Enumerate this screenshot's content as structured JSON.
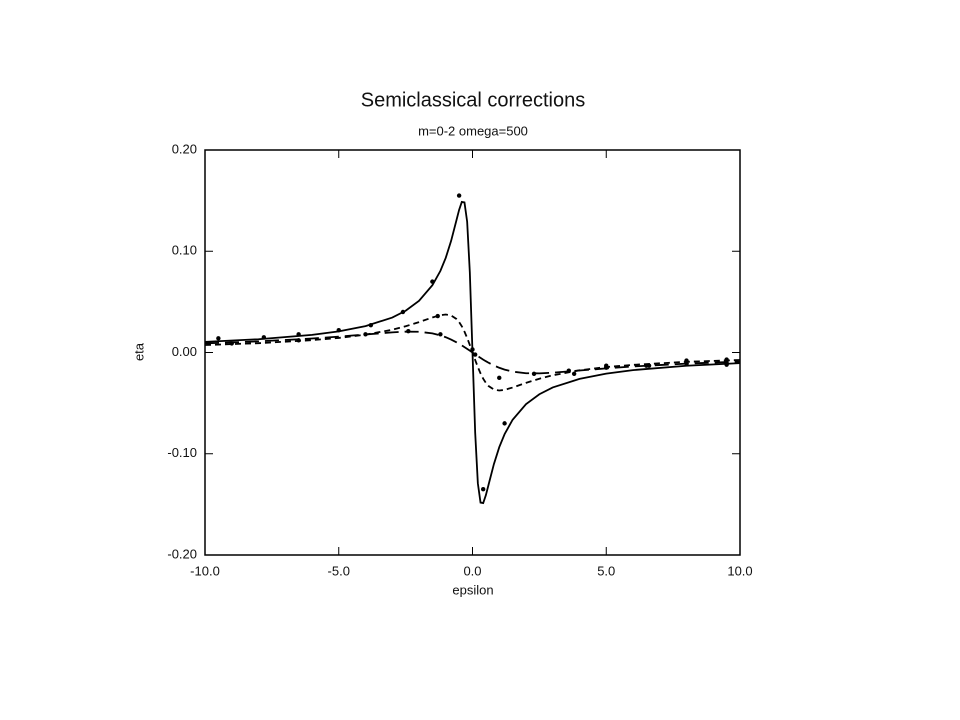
{
  "chart_data": {
    "type": "line",
    "title": "Semiclassical corrections",
    "subtitle": "m=0-2   omega=500",
    "xlabel": "epsilon",
    "ylabel": "eta",
    "xlim": [
      -10,
      10
    ],
    "ylim": [
      -0.2,
      0.2
    ],
    "xticks": [
      {
        "value": -10,
        "label": "-10.0"
      },
      {
        "value": -5,
        "label": "-5.0"
      },
      {
        "value": 0,
        "label": "0.0"
      },
      {
        "value": 5,
        "label": "5.0"
      },
      {
        "value": 10,
        "label": "10.0"
      }
    ],
    "yticks": [
      {
        "value": -0.2,
        "label": "-0.20"
      },
      {
        "value": -0.1,
        "label": "-0.10"
      },
      {
        "value": 0,
        "label": "0.00"
      },
      {
        "value": 0.1,
        "label": "0.10"
      },
      {
        "value": 0.2,
        "label": "0.20"
      }
    ],
    "x": [
      -10,
      -8,
      -6,
      -5,
      -4,
      -3,
      -2.5,
      -2,
      -1.5,
      -1.2,
      -1,
      -0.8,
      -0.6,
      -0.5,
      -0.4,
      -0.3,
      -0.2,
      -0.1,
      0,
      0.1,
      0.2,
      0.3,
      0.4,
      0.5,
      0.6,
      0.8,
      1,
      1.2,
      1.5,
      2,
      2.5,
      3,
      4,
      5,
      6,
      8,
      10
    ],
    "series": [
      {
        "type": "line",
        "color": "#000000",
        "dash": "none",
        "values": [
          0.0105,
          0.0131,
          0.0174,
          0.0209,
          0.0261,
          0.0345,
          0.0412,
          0.051,
          0.0664,
          0.0806,
          0.0935,
          0.1102,
          0.1306,
          0.1409,
          0.1487,
          0.1482,
          0.1292,
          0.0792,
          0,
          -0.0792,
          -0.1292,
          -0.1482,
          -0.1487,
          -0.1409,
          -0.1306,
          -0.1102,
          -0.0935,
          -0.0806,
          -0.0664,
          -0.051,
          -0.0412,
          -0.0345,
          -0.0261,
          -0.0209,
          -0.0174,
          -0.0131,
          -0.0105
        ]
      },
      {
        "type": "line",
        "color": "#000000",
        "dash": "6 4",
        "values": [
          0.0074,
          0.0092,
          0.0122,
          0.0144,
          0.0176,
          0.0225,
          0.0259,
          0.03,
          0.0346,
          0.0369,
          0.0375,
          0.0366,
          0.0331,
          0.03,
          0.0259,
          0.0206,
          0.0144,
          0.0074,
          0,
          -0.0074,
          -0.0144,
          -0.0206,
          -0.0259,
          -0.03,
          -0.0331,
          -0.0366,
          -0.0375,
          -0.0369,
          -0.0346,
          -0.03,
          -0.0259,
          -0.0225,
          -0.0176,
          -0.0144,
          -0.0122,
          -0.0092,
          -0.0074
        ]
      },
      {
        "type": "line",
        "color": "#000000",
        "dash": "14 6",
        "values": [
          0.009,
          0.011,
          0.0138,
          0.0157,
          0.0178,
          0.0199,
          0.0206,
          0.0205,
          0.0189,
          0.0169,
          0.0151,
          0.0128,
          0.0101,
          0.0086,
          0.007,
          0.0053,
          0.0036,
          0.0018,
          0,
          -0.0018,
          -0.0036,
          -0.0053,
          -0.007,
          -0.0086,
          -0.0101,
          -0.0128,
          -0.0151,
          -0.0169,
          -0.0189,
          -0.0205,
          -0.0206,
          -0.0199,
          -0.0178,
          -0.0157,
          -0.0138,
          -0.011,
          -0.009
        ]
      },
      {
        "type": "scatter",
        "color": "#000000",
        "x": [
          -9.5,
          -7.8,
          -6.5,
          -5,
          -3.8,
          -2.6,
          -1.5,
          -0.5,
          0.4,
          1.2,
          2.3,
          3.6,
          5,
          6.5,
          8,
          9.5,
          -9,
          -6.5,
          -4,
          -2.4,
          -1.3,
          -1.2,
          0,
          0.1,
          1,
          3.8,
          5,
          6.6,
          8,
          9.5
        ],
        "values": [
          0.014,
          0.015,
          0.018,
          0.022,
          0.027,
          0.04,
          0.07,
          0.155,
          -0.135,
          -0.07,
          -0.021,
          -0.018,
          -0.013,
          -0.013,
          -0.008,
          -0.007,
          0.009,
          0.012,
          0.018,
          0.021,
          0.036,
          0.018,
          0.003,
          -0.002,
          -0.025,
          -0.021,
          -0.015,
          -0.013,
          -0.011,
          -0.012
        ]
      }
    ]
  }
}
